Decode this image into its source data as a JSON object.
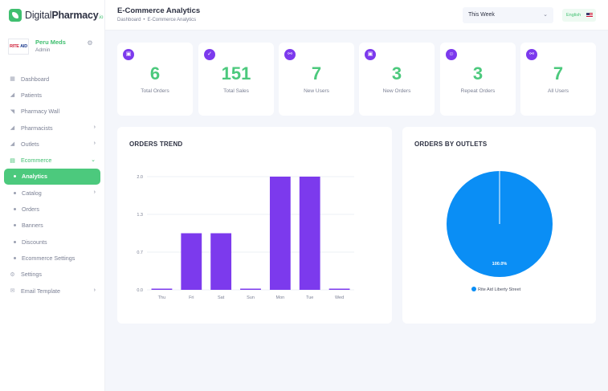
{
  "brand": {
    "name_regular": "Digital",
    "name_bold": "Pharmacy",
    "suffix": ".io"
  },
  "profile": {
    "name": "Peru Meds",
    "role": "Admin",
    "logo_text_a": "RITE",
    "logo_text_b": "AID"
  },
  "sidebar": {
    "items": [
      {
        "label": "Dashboard",
        "icon": "dashboard-icon"
      },
      {
        "label": "Patients",
        "icon": "patients-icon"
      },
      {
        "label": "Pharmacy Wall",
        "icon": "wall-icon"
      },
      {
        "label": "Pharmacists",
        "icon": "pharmacists-icon",
        "chevron": "›"
      },
      {
        "label": "Outlets",
        "icon": "outlets-icon",
        "chevron": "›"
      },
      {
        "label": "Ecommerce",
        "icon": "chart-icon",
        "chevron": "⌄"
      },
      {
        "label": "Analytics"
      },
      {
        "label": "Catalog",
        "chevron": "›"
      },
      {
        "label": "Orders"
      },
      {
        "label": "Banners"
      },
      {
        "label": "Discounts"
      },
      {
        "label": "Ecommerce Settings"
      },
      {
        "label": "Settings",
        "icon": "gear-icon"
      },
      {
        "label": "Email Template",
        "icon": "email-icon",
        "chevron": "›"
      }
    ]
  },
  "header": {
    "title": "E-Commerce Analytics",
    "breadcrumb": [
      "Dashboard",
      "E-Commerce Analytics"
    ],
    "breadcrumb_sep": "•",
    "period": "This Week",
    "language": "English"
  },
  "stats": [
    {
      "value": "6",
      "label": "Total Orders",
      "icon": "calendar-icon"
    },
    {
      "value": "151",
      "label": "Total Sales",
      "icon": "badge-check-icon"
    },
    {
      "value": "7",
      "label": "New Users",
      "icon": "link-icon"
    },
    {
      "value": "3",
      "label": "New Orders",
      "icon": "calendar-icon"
    },
    {
      "value": "3",
      "label": "Repeat Orders",
      "icon": "user-icon"
    },
    {
      "value": "7",
      "label": "All Users",
      "icon": "link-icon"
    }
  ],
  "colors": {
    "accent": "#4cc97d",
    "bar": "#7c3aed",
    "pie": "#0a8ef5"
  },
  "chart_data": [
    {
      "type": "bar",
      "title": "ORDERS TREND",
      "categories": [
        "Thu",
        "Fri",
        "Sat",
        "Sun",
        "Mon",
        "Tue",
        "Wed"
      ],
      "values": [
        0,
        1,
        1,
        0,
        2,
        2,
        0
      ],
      "yticks": [
        "0.0",
        "0.7",
        "1.3",
        "2.0"
      ],
      "ylim": [
        0,
        2
      ],
      "grid": true
    },
    {
      "type": "pie",
      "title": "ORDERS BY OUTLETS",
      "labels": [
        "Rite Aid Liberty Street"
      ],
      "values": [
        100
      ],
      "value_labels": [
        "100.0%"
      ],
      "legend": "bottom"
    }
  ]
}
